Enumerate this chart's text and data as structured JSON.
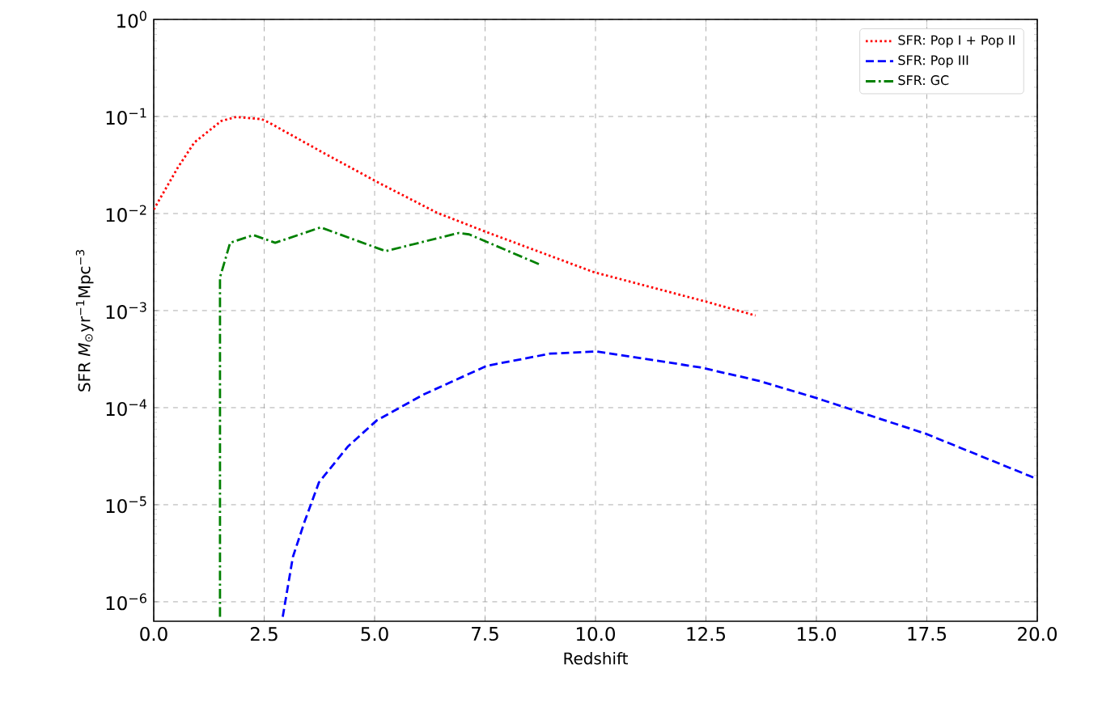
{
  "chart_data": {
    "type": "line",
    "xlabel": "Redshift",
    "ylabel": "SFR  *M*$_{⊙}$yr$^{−1}$Mpc$^{−3}$",
    "log": "y",
    "grid": true,
    "legend": "top right",
    "marker": "none",
    "xlim": [
      0,
      20
    ],
    "ylim": [
      6.3e-07,
      1
    ],
    "xticks": [
      {
        "value": 0,
        "label": "0.0"
      },
      2.5,
      {
        "value": 5,
        "label": "5.0"
      },
      7.5,
      {
        "value": 10,
        "label": "10.0"
      },
      12.5,
      {
        "value": 15,
        "label": "15.0"
      },
      17.5,
      {
        "value": 20,
        "label": "20.0"
      }
    ],
    "yticks": [
      {
        "value": 1e-06,
        "label": "10$^{−6}$"
      },
      {
        "value": 1e-05,
        "label": "10$^{−5}$"
      },
      {
        "value": 0.0001,
        "label": "10$^{−4}$"
      },
      {
        "value": 0.001,
        "label": "10$^{−3}$"
      },
      {
        "value": 0.01,
        "label": "10$^{−2}$"
      },
      {
        "value": 0.1,
        "label": "10$^{−1}$"
      },
      {
        "value": 1,
        "label": "10$^{0}$"
      }
    ],
    "series": [
      {
        "name": "SFR: Pop I + Pop II",
        "color": "#ff0000",
        "line_style": "dotted",
        "x": [
          0,
          0.55,
          0.92,
          1.53,
          1.87,
          2.44,
          2.6,
          3.85,
          5.07,
          6.41,
          7.51,
          9.95,
          12.52,
          13.62
        ],
        "values": [
          0.011,
          0.03,
          0.054,
          0.09,
          0.099,
          0.094,
          0.087,
          0.042,
          0.021,
          0.0102,
          0.0065,
          0.0025,
          0.00123,
          0.00089
        ]
      },
      {
        "name": "SFR: Pop III",
        "color": "#0000ff",
        "line_style": "dashed",
        "x": [
          2.92,
          3.15,
          3.41,
          3.74,
          4.4,
          5.05,
          6.1,
          7.54,
          8.97,
          10.02,
          12.37,
          13.68,
          14.99,
          17.47,
          19.96
        ],
        "values": [
          7e-07,
          2.9e-06,
          6.6e-06,
          1.7e-05,
          4e-05,
          7.4e-05,
          0.000136,
          0.00027,
          0.00036,
          0.00038,
          0.00026,
          0.00019,
          0.000126,
          5.4e-05,
          1.87e-05
        ]
      },
      {
        "name": "SFR: GC",
        "color": "#008000",
        "line_style": "dashdot",
        "x": [
          1.5,
          1.5,
          1.73,
          2.26,
          2.75,
          3.78,
          5.25,
          6.9,
          7.14,
          8.73
        ],
        "values": [
          7e-07,
          0.0022,
          0.005,
          0.006,
          0.005,
          0.0072,
          0.0041,
          0.0063,
          0.0061,
          0.003
        ]
      }
    ]
  }
}
